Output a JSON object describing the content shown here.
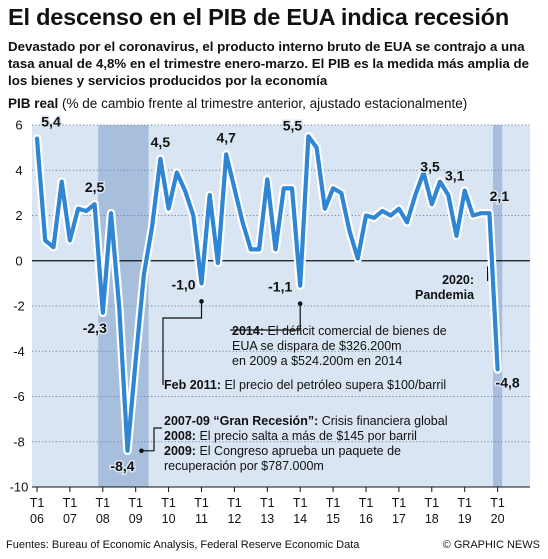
{
  "headline": "El descenso en el PIB de EUA indica recesión",
  "intro": "Devastado por el coronavirus, el producto interno bruto de EUA se contrajo a una tasa anual de 4,8% en el trimestre enero-marzo. El PIB es la medida más amplia de los bienes y servicios producidos por la economía",
  "source": "Fuentes: Bureau of Economic Analysis, Federal Reserve Economic Data",
  "credit": "© GRAPHIC NEWS",
  "annotations": {
    "a2014_bold": "2014:",
    "a2014_text": " El déficit comercial de bienes de",
    "a2014_line2": "EUA se dispara de $326.200m",
    "a2014_line3": "en 2009 a $524.200m en 2014",
    "feb2011_bold": "Feb 2011:",
    "feb2011_text": " El precio del petróleo supera $100/barril",
    "gr_bold": "2007-09 “Gran Recesión”:",
    "gr_text": " Crisis financiera global",
    "a2008_bold": "2008:",
    "a2008_text": " El precio salta a más de $145 por barril",
    "a2009_bold": "2009:",
    "a2009_text": " El Congreso aprueba un paquete de",
    "a2009_line2": "recuperación por $787.000m",
    "pandemia_line1": "2020:",
    "pandemia_line2": "Pandemia"
  },
  "chart_data": {
    "type": "line",
    "title": "PIB real",
    "subtitle": "(% de cambio frente al trimestre anterior, ajustado estacionalmente)",
    "ylim": [
      -10,
      6
    ],
    "yticks": [
      "6",
      "4",
      "2",
      "0",
      "-2",
      "-4",
      "-6",
      "-8",
      "-10"
    ],
    "xtick_labels": [
      {
        "q": "T1",
        "yr": "06"
      },
      {
        "q": "T1",
        "yr": "07"
      },
      {
        "q": "T1",
        "yr": "08"
      },
      {
        "q": "T1",
        "yr": "09"
      },
      {
        "q": "T1",
        "yr": "10"
      },
      {
        "q": "T1",
        "yr": "11"
      },
      {
        "q": "T1",
        "yr": "12"
      },
      {
        "q": "T1",
        "yr": "13"
      },
      {
        "q": "T1",
        "yr": "14"
      },
      {
        "q": "T1",
        "yr": "15"
      },
      {
        "q": "T1",
        "yr": "16"
      },
      {
        "q": "T1",
        "yr": "17"
      },
      {
        "q": "T1",
        "yr": "18"
      },
      {
        "q": "T1",
        "yr": "19"
      },
      {
        "q": "T1",
        "yr": "20"
      }
    ],
    "shaded_periods": [
      [
        "2008 T1",
        "2009 T2"
      ],
      [
        "2020 T1",
        "2020 T1"
      ]
    ],
    "grid": true,
    "legend": "none",
    "series": [
      {
        "quarters": [
          "2006 T1",
          "2006 T2",
          "2006 T3",
          "2006 T4",
          "2007 T1",
          "2007 T2",
          "2007 T3",
          "2007 T4",
          "2008 T1",
          "2008 T2",
          "2008 T3",
          "2008 T4",
          "2009 T1",
          "2009 T2",
          "2009 T3",
          "2009 T4",
          "2010 T1",
          "2010 T2",
          "2010 T3",
          "2010 T4",
          "2011 T1",
          "2011 T2",
          "2011 T3",
          "2011 T4",
          "2012 T1",
          "2012 T2",
          "2012 T3",
          "2012 T4",
          "2013 T1",
          "2013 T2",
          "2013 T3",
          "2013 T4",
          "2014 T1",
          "2014 T2",
          "2014 T3",
          "2014 T4",
          "2015 T1",
          "2015 T2",
          "2015 T3",
          "2015 T4",
          "2016 T1",
          "2016 T2",
          "2016 T3",
          "2016 T4",
          "2017 T1",
          "2017 T2",
          "2017 T3",
          "2017 T4",
          "2018 T1",
          "2018 T2",
          "2018 T3",
          "2018 T4",
          "2019 T1",
          "2019 T2",
          "2019 T3",
          "2019 T4",
          "2020 T1"
        ],
        "values": [
          5.4,
          0.9,
          0.6,
          3.5,
          0.9,
          2.3,
          2.2,
          2.5,
          -2.3,
          2.1,
          -2.1,
          -8.4,
          -4.4,
          -0.6,
          1.5,
          4.5,
          2.3,
          3.9,
          3.1,
          2.0,
          -1.0,
          2.9,
          -0.1,
          4.7,
          3.2,
          1.7,
          0.5,
          0.5,
          3.6,
          0.5,
          3.2,
          3.2,
          -1.1,
          5.5,
          5.0,
          2.3,
          3.2,
          3.0,
          1.3,
          0.1,
          2.0,
          1.9,
          2.2,
          2.0,
          2.3,
          1.7,
          2.9,
          3.9,
          2.5,
          3.5,
          2.9,
          1.1,
          3.1,
          2.0,
          2.1,
          2.1,
          -4.8
        ],
        "labels": [
          {
            "i": 0,
            "text": "5,4"
          },
          {
            "i": 7,
            "text": "2,5"
          },
          {
            "i": 8,
            "text": "-2,3"
          },
          {
            "i": 11,
            "text": "-8,4"
          },
          {
            "i": 15,
            "text": "4,5"
          },
          {
            "i": 20,
            "text": "-1,0"
          },
          {
            "i": 23,
            "text": "4,7"
          },
          {
            "i": 32,
            "text": "-1,1"
          },
          {
            "i": 33,
            "text": "5,5"
          },
          {
            "i": 49,
            "text": "3,5"
          },
          {
            "i": 52,
            "text": "3,1"
          },
          {
            "i": 55,
            "text": "2,1"
          },
          {
            "i": 56,
            "text": "-4,8"
          }
        ]
      }
    ]
  }
}
